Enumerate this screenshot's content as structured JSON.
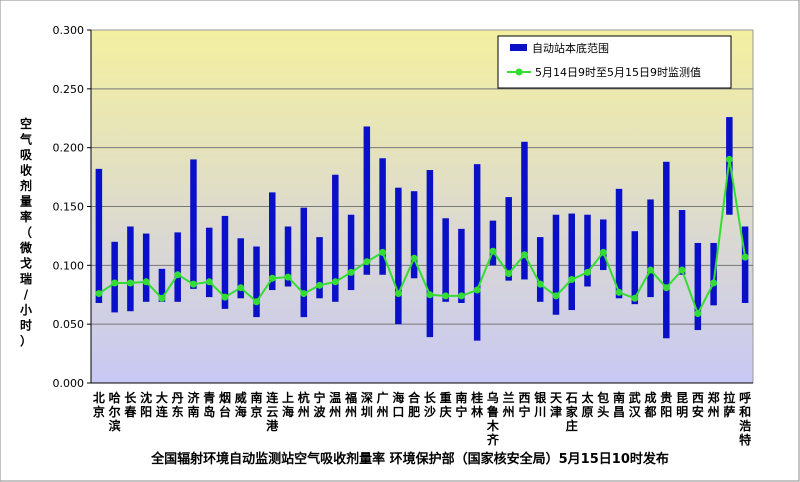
{
  "chart_data": {
    "type": "bar",
    "title": "全国辐射环境自动监测站空气吸收剂量率 环境保护部（国家核安全局）5月15日10时发布",
    "ylabel": "空气吸收剂量率（微戈瑞/小时）",
    "ylim": [
      0,
      0.3
    ],
    "yticks": [
      "0.000",
      "0.050",
      "0.100",
      "0.150",
      "0.200",
      "0.250",
      "0.300"
    ],
    "legend_position": "top-right",
    "colors": {
      "range_bar": "#0a10c8",
      "measured_line": "#33dd33",
      "bg_top": "#f4f0a0",
      "bg_bottom": "#c8c8f4"
    },
    "categories": [
      "北京",
      "哈尔滨",
      "长春",
      "沈阳",
      "大连",
      "丹东",
      "济南",
      "青岛",
      "烟台",
      "威海",
      "南京",
      "连云港",
      "上海",
      "杭州",
      "宁波",
      "温州",
      "福州",
      "深圳",
      "广州",
      "海口",
      "合肥",
      "长沙",
      "重庆",
      "南宁",
      "桂林",
      "乌鲁木齐",
      "兰州",
      "西宁",
      "银川",
      "天津",
      "石家庄",
      "太原",
      "包头",
      "南昌",
      "武汉",
      "成都",
      "贵阳",
      "昆明",
      "西安",
      "郑州",
      "拉萨",
      "呼和浩特"
    ],
    "series": [
      {
        "name": "自动站本底范围",
        "type": "range",
        "low": [
          0.068,
          0.06,
          0.061,
          0.069,
          0.069,
          0.069,
          0.08,
          0.073,
          0.063,
          0.072,
          0.056,
          0.079,
          0.082,
          0.056,
          0.072,
          0.069,
          0.079,
          0.092,
          0.092,
          0.05,
          0.089,
          0.039,
          0.069,
          0.068,
          0.036,
          0.1,
          0.087,
          0.088,
          0.069,
          0.058,
          0.062,
          0.082,
          0.096,
          0.072,
          0.067,
          0.073,
          0.038,
          0.092,
          0.045,
          0.066,
          0.143,
          0.068
        ],
        "high": [
          0.182,
          0.12,
          0.133,
          0.127,
          0.097,
          0.128,
          0.19,
          0.132,
          0.142,
          0.123,
          0.116,
          0.162,
          0.133,
          0.149,
          0.124,
          0.177,
          0.143,
          0.218,
          0.191,
          0.166,
          0.163,
          0.181,
          0.14,
          0.131,
          0.186,
          0.138,
          0.158,
          0.205,
          0.124,
          0.143,
          0.144,
          0.143,
          0.139,
          0.165,
          0.129,
          0.156,
          0.188,
          0.147,
          0.119,
          0.119,
          0.226,
          0.133
        ]
      },
      {
        "name": "5月14日9时至5月15日9时监测值",
        "type": "line",
        "values": [
          0.076,
          0.085,
          0.085,
          0.086,
          0.072,
          0.092,
          0.084,
          0.086,
          0.073,
          0.081,
          0.069,
          0.089,
          0.09,
          0.076,
          0.083,
          0.086,
          0.094,
          0.103,
          0.111,
          0.076,
          0.106,
          0.075,
          0.074,
          0.074,
          0.079,
          0.112,
          0.093,
          0.109,
          0.084,
          0.074,
          0.088,
          0.094,
          0.111,
          0.077,
          0.072,
          0.096,
          0.081,
          0.096,
          0.059,
          0.085,
          0.19,
          0.107
        ]
      }
    ]
  }
}
